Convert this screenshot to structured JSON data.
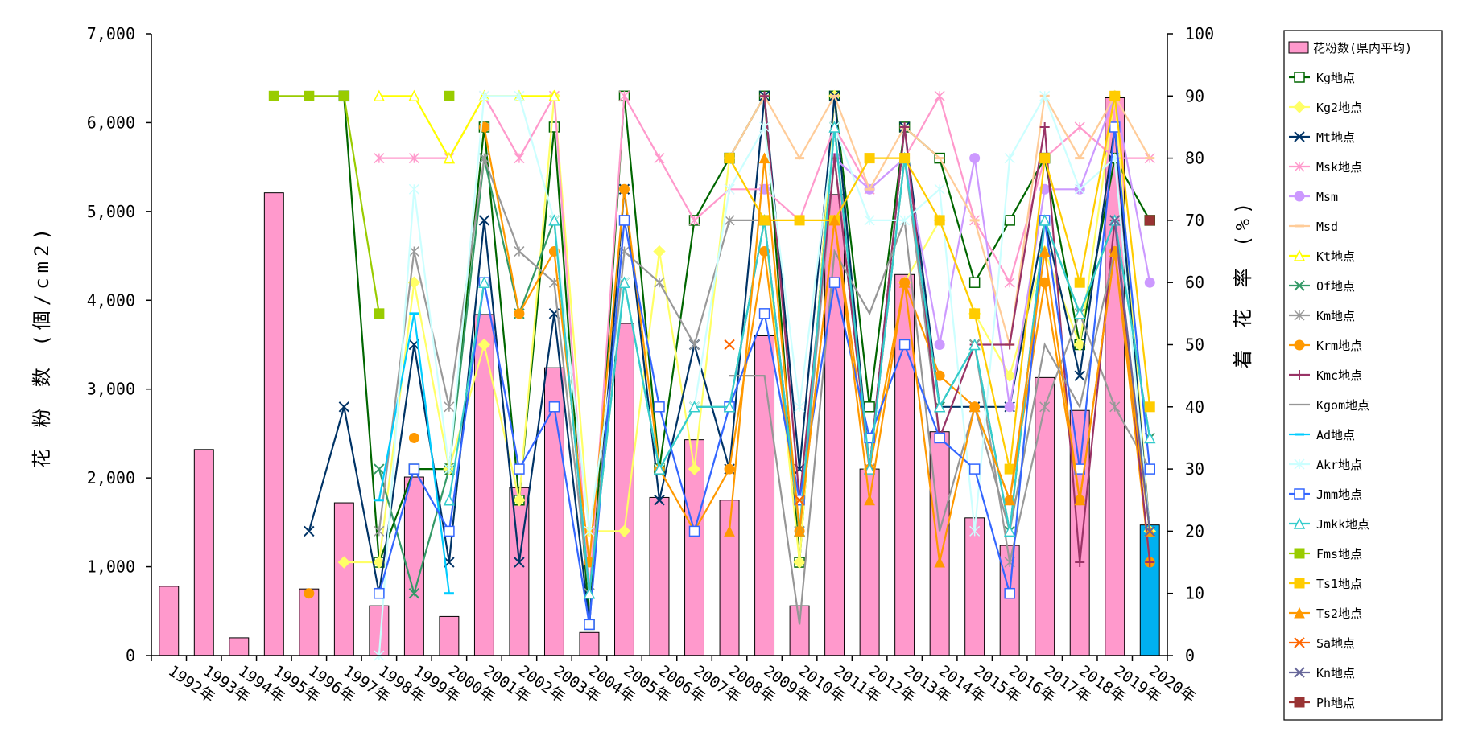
{
  "chart_data": {
    "type": "bar",
    "title": "",
    "ylabel": "花 粉 数 (個/cm2)",
    "y2label": "着 花 率 (%)",
    "ylim": [
      0,
      7000
    ],
    "y2lim": [
      0,
      100
    ],
    "yticks": [
      "0",
      "1,000",
      "2,000",
      "3,000",
      "4,000",
      "5,000",
      "6,000",
      "7,000"
    ],
    "y2ticks": [
      "0",
      "10",
      "20",
      "30",
      "40",
      "50",
      "60",
      "70",
      "80",
      "90",
      "100"
    ],
    "legend_position": "right",
    "categories": [
      "1992年",
      "1993年",
      "1994年",
      "1995年",
      "1996年",
      "1997年",
      "1998年",
      "1999年",
      "2000年",
      "2001年",
      "2002年",
      "2003年",
      "2004年",
      "2005年",
      "2006年",
      "2007年",
      "2008年",
      "2009年",
      "2010年",
      "2011年",
      "2012年",
      "2013年",
      "2014年",
      "2015年",
      "2016年",
      "2017年",
      "2018年",
      "2019年",
      "2020年"
    ],
    "bars": {
      "name": "花粉数(県内平均)",
      "color": "#ff99cc",
      "last_color": "#00b0f0",
      "values": [
        780,
        2320,
        200,
        5210,
        750,
        1720,
        560,
        2010,
        440,
        3840,
        1890,
        3240,
        260,
        3740,
        1780,
        2430,
        1750,
        3600,
        560,
        5190,
        2100,
        4290,
        2520,
        1550,
        1240,
        3130,
        2760,
        6280,
        1470
      ]
    },
    "series": [
      {
        "name": "Kg地点",
        "color": "#006600",
        "marker": "square-open",
        "values": [
          null,
          null,
          null,
          null,
          null,
          90,
          15,
          30,
          30,
          85,
          25,
          85,
          5,
          90,
          30,
          70,
          80,
          90,
          15,
          90,
          40,
          85,
          80,
          60,
          70,
          80,
          50,
          80,
          70
        ]
      },
      {
        "name": "Kg2地点",
        "color": "#ffff66",
        "marker": "diamond",
        "values": [
          null,
          null,
          null,
          null,
          null,
          15,
          15,
          60,
          30,
          50,
          25,
          90,
          20,
          20,
          65,
          30,
          80,
          70,
          15,
          90,
          30,
          60,
          70,
          55,
          45,
          65,
          50,
          90,
          20
        ]
      },
      {
        "name": "Mt地点",
        "color": "#003366",
        "marker": "x",
        "values": [
          null,
          null,
          null,
          null,
          20,
          40,
          10,
          50,
          15,
          70,
          15,
          55,
          5,
          75,
          25,
          50,
          30,
          90,
          30,
          90,
          30,
          85,
          40,
          40,
          40,
          70,
          45,
          85,
          20
        ]
      },
      {
        "name": "Msk地点",
        "color": "#ff99cc",
        "marker": "star",
        "values": [
          null,
          null,
          null,
          null,
          null,
          null,
          80,
          80,
          80,
          90,
          80,
          90,
          10,
          90,
          80,
          70,
          75,
          75,
          70,
          85,
          75,
          80,
          90,
          70,
          60,
          80,
          85,
          80,
          80
        ]
      },
      {
        "name": "Msm",
        "color": "#cc99ff",
        "marker": "circle",
        "values": [
          null,
          null,
          null,
          null,
          null,
          null,
          null,
          null,
          null,
          null,
          null,
          null,
          null,
          null,
          null,
          null,
          null,
          75,
          null,
          80,
          75,
          80,
          50,
          80,
          40,
          75,
          75,
          90,
          60
        ]
      },
      {
        "name": "Msd",
        "color": "#ffcc99",
        "marker": "dash",
        "values": [
          null,
          null,
          null,
          null,
          null,
          null,
          null,
          null,
          null,
          null,
          null,
          null,
          null,
          null,
          null,
          null,
          80,
          90,
          80,
          90,
          75,
          85,
          80,
          70,
          50,
          90,
          80,
          90,
          80
        ]
      },
      {
        "name": "Kt地点",
        "color": "#ffff00",
        "marker": "triangle-open",
        "values": [
          null,
          null,
          null,
          null,
          null,
          null,
          90,
          90,
          80,
          90,
          90,
          90,
          null,
          null,
          null,
          null,
          null,
          null,
          null,
          null,
          null,
          null,
          null,
          null,
          null,
          null,
          null,
          null,
          null
        ]
      },
      {
        "name": "Of地点",
        "color": "#339966",
        "marker": "x",
        "values": [
          null,
          null,
          null,
          null,
          null,
          null,
          30,
          10,
          30,
          80,
          55,
          70,
          10,
          60,
          30,
          40,
          40,
          70,
          20,
          85,
          30,
          80,
          40,
          50,
          20,
          70,
          55,
          70,
          35
        ]
      },
      {
        "name": "Km地点",
        "color": "#999999",
        "marker": "star",
        "values": [
          null,
          null,
          null,
          null,
          null,
          null,
          20,
          65,
          40,
          80,
          65,
          60,
          10,
          65,
          60,
          50,
          70,
          70,
          20,
          80,
          30,
          80,
          35,
          50,
          15,
          40,
          55,
          40,
          30
        ]
      },
      {
        "name": "Krm地点",
        "color": "#ff9900",
        "marker": "circle",
        "values": [
          null,
          null,
          null,
          null,
          10,
          null,
          null,
          35,
          null,
          85,
          55,
          65,
          15,
          75,
          30,
          20,
          30,
          65,
          20,
          70,
          30,
          60,
          45,
          40,
          25,
          60,
          25,
          65,
          15
        ]
      },
      {
        "name": "Kmc地点",
        "color": "#993366",
        "marker": "plus",
        "values": [
          null,
          null,
          null,
          null,
          null,
          null,
          null,
          null,
          null,
          null,
          null,
          null,
          null,
          null,
          null,
          null,
          null,
          90,
          25,
          80,
          30,
          85,
          35,
          50,
          50,
          85,
          15,
          70,
          15
        ]
      },
      {
        "name": "Kgom地点",
        "color": "#969696",
        "marker": "none",
        "values": [
          null,
          null,
          null,
          null,
          null,
          null,
          null,
          null,
          null,
          null,
          null,
          null,
          null,
          null,
          null,
          null,
          45,
          45,
          5,
          65,
          55,
          70,
          20,
          40,
          20,
          50,
          40,
          65,
          20
        ]
      },
      {
        "name": "Ad地点",
        "color": "#00ccff",
        "marker": "dash",
        "values": [
          null,
          null,
          null,
          null,
          null,
          null,
          25,
          55,
          10,
          null,
          null,
          null,
          null,
          null,
          null,
          null,
          null,
          null,
          null,
          null,
          null,
          null,
          null,
          null,
          null,
          null,
          null,
          null,
          null
        ]
      },
      {
        "name": "Akr地点",
        "color": "#ccffff",
        "marker": "star",
        "values": [
          null,
          null,
          null,
          null,
          null,
          null,
          0,
          75,
          30,
          90,
          90,
          70,
          20,
          60,
          30,
          40,
          75,
          85,
          40,
          85,
          70,
          70,
          75,
          20,
          80,
          90,
          75,
          80,
          20
        ]
      },
      {
        "name": "Jmm地点",
        "color": "#3366ff",
        "marker": "square-open",
        "values": [
          null,
          null,
          null,
          null,
          null,
          null,
          10,
          30,
          20,
          60,
          30,
          40,
          5,
          70,
          40,
          20,
          40,
          55,
          25,
          60,
          35,
          50,
          35,
          30,
          10,
          70,
          30,
          85,
          30
        ]
      },
      {
        "name": "Jmkk地点",
        "color": "#33cccc",
        "marker": "triangle-open",
        "values": [
          null,
          null,
          null,
          null,
          null,
          null,
          null,
          null,
          25,
          60,
          null,
          70,
          10,
          60,
          30,
          40,
          40,
          70,
          20,
          85,
          30,
          80,
          40,
          50,
          20,
          70,
          55,
          70,
          35
        ]
      },
      {
        "name": "Fms地点",
        "color": "#99cc00",
        "marker": "square",
        "values": [
          null,
          null,
          null,
          90,
          90,
          90,
          55,
          null,
          90,
          null,
          null,
          null,
          null,
          null,
          null,
          null,
          null,
          null,
          null,
          null,
          null,
          null,
          null,
          null,
          null,
          null,
          null,
          null,
          null
        ]
      },
      {
        "name": "Ts1地点",
        "color": "#ffcc00",
        "marker": "square",
        "values": [
          null,
          null,
          null,
          null,
          null,
          null,
          null,
          null,
          null,
          null,
          null,
          null,
          null,
          null,
          null,
          null,
          80,
          70,
          70,
          70,
          80,
          80,
          70,
          55,
          30,
          80,
          60,
          90,
          40
        ]
      },
      {
        "name": "Ts2地点",
        "color": "#ff9900",
        "marker": "triangle",
        "values": [
          null,
          null,
          null,
          null,
          null,
          null,
          null,
          null,
          null,
          null,
          null,
          null,
          null,
          null,
          null,
          null,
          20,
          80,
          20,
          70,
          25,
          60,
          15,
          40,
          25,
          65,
          25,
          65,
          20
        ]
      },
      {
        "name": "Sa地点",
        "color": "#ff6600",
        "marker": "x",
        "values": [
          null,
          null,
          null,
          null,
          null,
          null,
          null,
          null,
          null,
          null,
          null,
          null,
          null,
          null,
          null,
          null,
          50,
          null,
          25,
          null,
          null,
          null,
          null,
          null,
          null,
          null,
          null,
          null,
          null
        ]
      },
      {
        "name": "Kn地点",
        "color": "#666699",
        "marker": "x",
        "values": [
          null,
          null,
          null,
          null,
          null,
          null,
          null,
          null,
          null,
          null,
          null,
          null,
          null,
          null,
          null,
          null,
          null,
          null,
          null,
          null,
          null,
          null,
          null,
          null,
          null,
          null,
          null,
          70,
          20
        ]
      },
      {
        "name": "Ph地点",
        "color": "#993333",
        "marker": "square",
        "values": [
          null,
          null,
          null,
          null,
          null,
          null,
          null,
          null,
          null,
          null,
          null,
          null,
          null,
          null,
          null,
          null,
          null,
          null,
          null,
          null,
          null,
          null,
          null,
          null,
          null,
          null,
          null,
          null,
          70
        ]
      }
    ]
  }
}
